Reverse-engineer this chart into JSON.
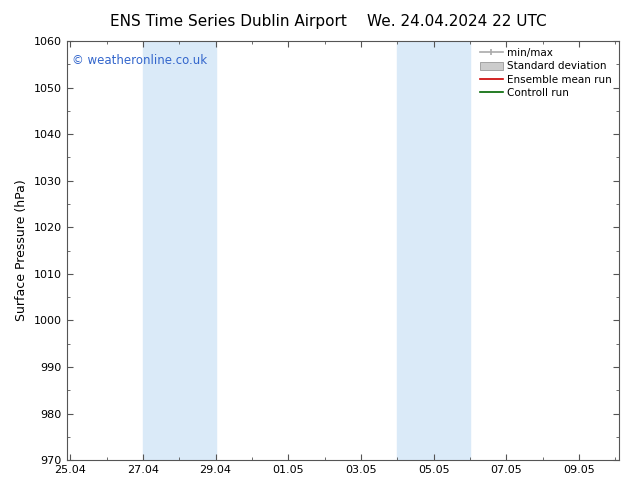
{
  "title_left": "ENS Time Series Dublin Airport",
  "title_right": "We. 24.04.2024 22 UTC",
  "ylabel": "Surface Pressure (hPa)",
  "ylim": [
    970,
    1060
  ],
  "yticks": [
    970,
    980,
    990,
    1000,
    1010,
    1020,
    1030,
    1040,
    1050,
    1060
  ],
  "xtick_labels": [
    "25.04",
    "27.04",
    "29.04",
    "01.05",
    "03.05",
    "05.05",
    "07.05",
    "09.05"
  ],
  "xtick_positions": [
    0,
    2,
    4,
    6,
    8,
    10,
    12,
    14
  ],
  "xlim": [
    -0.1,
    15.1
  ],
  "shade_bands": [
    {
      "start": 2,
      "end": 4,
      "color": "#daeaf8"
    },
    {
      "start": 9,
      "end": 11,
      "color": "#daeaf8"
    }
  ],
  "watermark": "© weatheronline.co.uk",
  "watermark_color": "#3366cc",
  "legend_entries": [
    {
      "label": "min/max",
      "color": "#aaaaaa",
      "style": "errorbar"
    },
    {
      "label": "Standard deviation",
      "color": "#cccccc",
      "style": "bar"
    },
    {
      "label": "Ensemble mean run",
      "color": "#cc0000",
      "style": "line"
    },
    {
      "label": "Controll run",
      "color": "#006600",
      "style": "line"
    }
  ],
  "bg_color": "#ffffff",
  "plot_bg_color": "#ffffff",
  "title_fontsize": 11,
  "label_fontsize": 9,
  "tick_fontsize": 8,
  "spine_color": "#555555"
}
